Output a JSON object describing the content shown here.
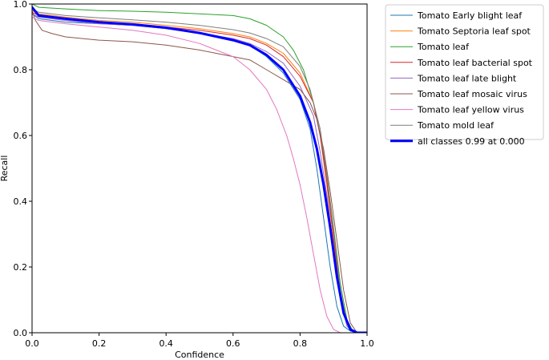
{
  "chart_data": {
    "type": "line",
    "title": "",
    "xlabel": "Confidence",
    "ylabel": "Recall",
    "xlim": [
      0,
      1
    ],
    "ylim": [
      0,
      1
    ],
    "xticks": [
      "0.0",
      "0.2",
      "0.4",
      "0.6",
      "0.8",
      "1.0"
    ],
    "yticks": [
      "0.0",
      "0.2",
      "0.4",
      "0.6",
      "0.8",
      "1.0"
    ],
    "grid": false,
    "legend_position": "outside-top-right",
    "series": [
      {
        "name": "Tomato Early blight leaf",
        "color": "#1f77b4",
        "width": 1,
        "x": [
          0,
          0.02,
          0.1,
          0.2,
          0.3,
          0.4,
          0.5,
          0.6,
          0.65,
          0.7,
          0.75,
          0.8,
          0.83,
          0.85,
          0.87,
          0.89,
          0.91,
          0.93,
          0.95,
          0.97,
          1.0
        ],
        "y": [
          0.97,
          0.955,
          0.945,
          0.94,
          0.935,
          0.925,
          0.91,
          0.89,
          0.875,
          0.84,
          0.79,
          0.71,
          0.62,
          0.5,
          0.35,
          0.2,
          0.08,
          0.02,
          0.005,
          0,
          0
        ]
      },
      {
        "name": "Tomato Septoria leaf spot",
        "color": "#ff7f0e",
        "width": 1,
        "x": [
          0,
          0.02,
          0.1,
          0.2,
          0.3,
          0.4,
          0.5,
          0.6,
          0.65,
          0.7,
          0.75,
          0.8,
          0.84,
          0.86,
          0.88,
          0.9,
          0.92,
          0.94,
          0.96,
          1.0
        ],
        "y": [
          0.98,
          0.97,
          0.96,
          0.95,
          0.945,
          0.935,
          0.925,
          0.91,
          0.9,
          0.88,
          0.85,
          0.79,
          0.7,
          0.6,
          0.45,
          0.28,
          0.12,
          0.03,
          0,
          0
        ]
      },
      {
        "name": "Tomato leaf",
        "color": "#2ca02c",
        "width": 1,
        "x": [
          0,
          0.02,
          0.1,
          0.2,
          0.3,
          0.4,
          0.5,
          0.6,
          0.65,
          0.7,
          0.75,
          0.78,
          0.81,
          0.84,
          0.86,
          0.88,
          0.9,
          0.92,
          0.94,
          0.96,
          1.0
        ],
        "y": [
          1.0,
          0.99,
          0.985,
          0.98,
          0.978,
          0.975,
          0.97,
          0.965,
          0.955,
          0.935,
          0.9,
          0.86,
          0.8,
          0.7,
          0.6,
          0.48,
          0.32,
          0.15,
          0.04,
          0,
          0
        ]
      },
      {
        "name": "Tomato leaf bacterial spot",
        "color": "#d62728",
        "width": 1,
        "x": [
          0,
          0.02,
          0.1,
          0.2,
          0.3,
          0.4,
          0.5,
          0.6,
          0.65,
          0.7,
          0.75,
          0.8,
          0.84,
          0.86,
          0.88,
          0.9,
          0.92,
          0.94,
          0.96,
          1.0
        ],
        "y": [
          0.975,
          0.965,
          0.955,
          0.945,
          0.94,
          0.93,
          0.92,
          0.905,
          0.895,
          0.875,
          0.84,
          0.78,
          0.7,
          0.6,
          0.46,
          0.29,
          0.12,
          0.03,
          0,
          0
        ]
      },
      {
        "name": "Tomato leaf late blight",
        "color": "#9467bd",
        "width": 1,
        "x": [
          0,
          0.02,
          0.1,
          0.2,
          0.3,
          0.4,
          0.5,
          0.6,
          0.65,
          0.7,
          0.75,
          0.8,
          0.84,
          0.86,
          0.88,
          0.9,
          0.92,
          0.94,
          0.96,
          1.0
        ],
        "y": [
          0.97,
          0.96,
          0.95,
          0.94,
          0.935,
          0.925,
          0.912,
          0.895,
          0.88,
          0.855,
          0.82,
          0.75,
          0.66,
          0.55,
          0.42,
          0.26,
          0.1,
          0.02,
          0,
          0
        ]
      },
      {
        "name": "Tomato leaf mosaic virus",
        "color": "#8c564b",
        "width": 1,
        "x": [
          0,
          0.01,
          0.03,
          0.06,
          0.1,
          0.2,
          0.3,
          0.4,
          0.5,
          0.55,
          0.6,
          0.65,
          0.7,
          0.75,
          0.8,
          0.83,
          0.85,
          0.87,
          0.89,
          0.91,
          0.93,
          0.95,
          0.97,
          1.0
        ],
        "y": [
          0.98,
          0.95,
          0.92,
          0.91,
          0.9,
          0.89,
          0.885,
          0.875,
          0.86,
          0.85,
          0.84,
          0.83,
          0.8,
          0.77,
          0.74,
          0.7,
          0.65,
          0.56,
          0.43,
          0.28,
          0.13,
          0.03,
          0,
          0
        ]
      },
      {
        "name": "Tomato leaf yellow virus",
        "color": "#e377c2",
        "width": 1,
        "x": [
          0,
          0.02,
          0.1,
          0.2,
          0.3,
          0.4,
          0.5,
          0.6,
          0.65,
          0.7,
          0.73,
          0.76,
          0.78,
          0.8,
          0.82,
          0.84,
          0.86,
          0.88,
          0.9,
          0.92,
          0.94,
          1.0
        ],
        "y": [
          0.96,
          0.95,
          0.94,
          0.93,
          0.92,
          0.905,
          0.88,
          0.84,
          0.8,
          0.74,
          0.68,
          0.6,
          0.53,
          0.45,
          0.35,
          0.24,
          0.13,
          0.05,
          0.01,
          0,
          0,
          0
        ]
      },
      {
        "name": "Tomato mold leaf",
        "color": "#7f7f7f",
        "width": 1,
        "x": [
          0,
          0.02,
          0.1,
          0.2,
          0.3,
          0.4,
          0.5,
          0.6,
          0.65,
          0.7,
          0.75,
          0.8,
          0.83,
          0.86,
          0.88,
          0.9,
          0.92,
          0.94,
          0.96,
          1.0
        ],
        "y": [
          0.985,
          0.975,
          0.965,
          0.958,
          0.952,
          0.945,
          0.935,
          0.922,
          0.912,
          0.895,
          0.87,
          0.81,
          0.74,
          0.62,
          0.48,
          0.31,
          0.13,
          0.03,
          0,
          0
        ]
      },
      {
        "name": "all classes 0.99 at 0.000",
        "color": "#0000ff",
        "width": 3,
        "x": [
          0,
          0.02,
          0.1,
          0.2,
          0.3,
          0.4,
          0.5,
          0.6,
          0.65,
          0.7,
          0.75,
          0.8,
          0.83,
          0.85,
          0.87,
          0.89,
          0.91,
          0.93,
          0.95,
          0.97,
          1.0
        ],
        "y": [
          0.99,
          0.965,
          0.955,
          0.945,
          0.938,
          0.928,
          0.912,
          0.89,
          0.875,
          0.845,
          0.8,
          0.72,
          0.64,
          0.56,
          0.45,
          0.32,
          0.17,
          0.06,
          0.01,
          0,
          0
        ]
      }
    ]
  }
}
